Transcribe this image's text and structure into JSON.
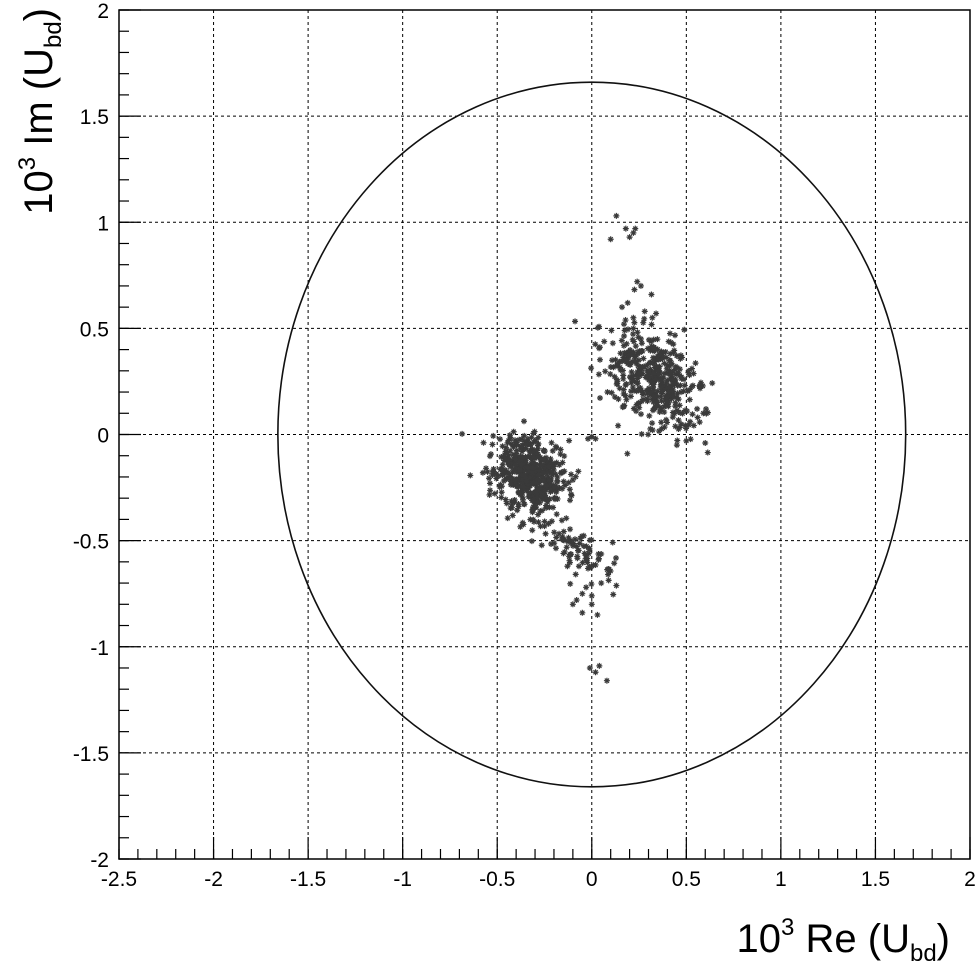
{
  "chart_data": {
    "type": "scatter",
    "xlabel": {
      "pre": "10",
      "sup": "3",
      "mid": " Re (U",
      "sub": "bd",
      "post": ")"
    },
    "ylabel": {
      "pre": "10",
      "sup": "3",
      "mid": " Im (U",
      "sub": "bd",
      "post": ")"
    },
    "xlim": [
      -2.5,
      2
    ],
    "ylim": [
      -2,
      2
    ],
    "x_ticks": [
      -2.5,
      -2,
      -1.5,
      -1,
      -0.5,
      0,
      0.5,
      1,
      1.5,
      2
    ],
    "x_tick_labels": [
      "-2.5",
      "-2",
      "-1.5",
      "-1",
      "-0.5",
      "0",
      "0.5",
      "1",
      "1.5",
      "2"
    ],
    "y_ticks": [
      -2,
      -1.5,
      -1,
      -0.5,
      0,
      0.5,
      1,
      1.5,
      2
    ],
    "y_tick_labels": [
      "-2",
      "-1.5",
      "-1",
      "-0.5",
      "0",
      "0.5",
      "1",
      "1.5",
      "2"
    ],
    "grid": true,
    "circle": {
      "cx": 0,
      "cy": 0,
      "r": 1.66
    },
    "marker": "asterisk",
    "clusters": [
      {
        "center": [
          0.32,
          0.27
        ],
        "spread": [
          0.1,
          0.14
        ],
        "count": 420,
        "orientation_deg": -45
      },
      {
        "center": [
          -0.33,
          -0.19
        ],
        "spread": [
          0.08,
          0.1
        ],
        "count": 520,
        "orientation_deg": -55
      },
      {
        "center": [
          -0.08,
          -0.55
        ],
        "spread": [
          0.05,
          0.12
        ],
        "count": 90,
        "orientation_deg": -60
      }
    ],
    "points": [
      [
        0.13,
        1.03
      ],
      [
        0.18,
        0.97
      ],
      [
        0.2,
        0.93
      ],
      [
        0.22,
        0.95
      ],
      [
        0.1,
        0.92
      ],
      [
        0.23,
        0.97
      ],
      [
        0.24,
        0.72
      ],
      [
        0.26,
        0.7
      ],
      [
        0.16,
        0.6
      ],
      [
        0.19,
        0.62
      ],
      [
        0.28,
        0.58
      ],
      [
        0.32,
        0.55
      ],
      [
        0.34,
        0.57
      ],
      [
        0.22,
        0.55
      ],
      [
        0.52,
        0.06
      ],
      [
        0.56,
        0.08
      ],
      [
        0.59,
        0.1
      ],
      [
        0.5,
        -0.03
      ],
      [
        0.6,
        -0.04
      ],
      [
        0.45,
        -0.05
      ],
      [
        0.0,
        -0.01
      ],
      [
        0.02,
        -0.02
      ],
      [
        -0.02,
        -0.02
      ],
      [
        -0.05,
        -0.75
      ],
      [
        -0.03,
        -0.72
      ],
      [
        0.0,
        -0.76
      ],
      [
        0.05,
        -0.7
      ],
      [
        -0.08,
        -0.78
      ],
      [
        -0.05,
        -0.84
      ],
      [
        0.03,
        -0.85
      ],
      [
        0.0,
        -0.8
      ],
      [
        -0.1,
        -0.8
      ],
      [
        -0.01,
        -1.1
      ],
      [
        0.02,
        -1.12
      ],
      [
        0.04,
        -1.09
      ],
      [
        0.08,
        -1.16
      ]
    ]
  }
}
